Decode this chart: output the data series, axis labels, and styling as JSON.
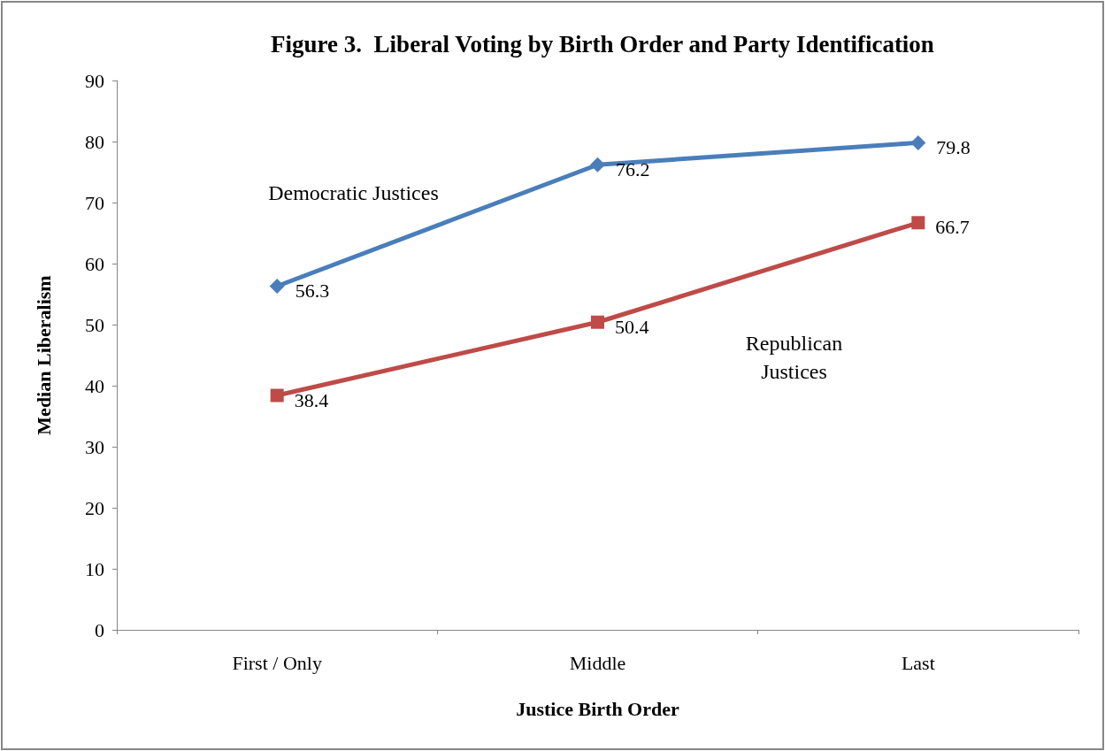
{
  "chart_data": {
    "type": "line",
    "title": "Figure 3.  Liberal Voting by Birth Order and Party Identification",
    "xlabel": "Justice Birth Order",
    "ylabel": "Median Liberalism",
    "categories": [
      "First / Only",
      "Middle",
      "Last"
    ],
    "series": [
      {
        "name": "Democratic Justices",
        "color": "#4a7ebb",
        "marker": "diamond",
        "values": [
          56.3,
          76.2,
          79.8
        ]
      },
      {
        "name": "Republican Justices",
        "color": "#be4b48",
        "marker": "square",
        "values": [
          38.4,
          50.4,
          66.7
        ]
      }
    ],
    "ylim": [
      0,
      90
    ],
    "yticks": [
      0,
      10,
      20,
      30,
      40,
      50,
      60,
      70,
      80,
      90
    ],
    "grid": false,
    "legend": false,
    "data_labels": true,
    "line_style": "solid"
  }
}
